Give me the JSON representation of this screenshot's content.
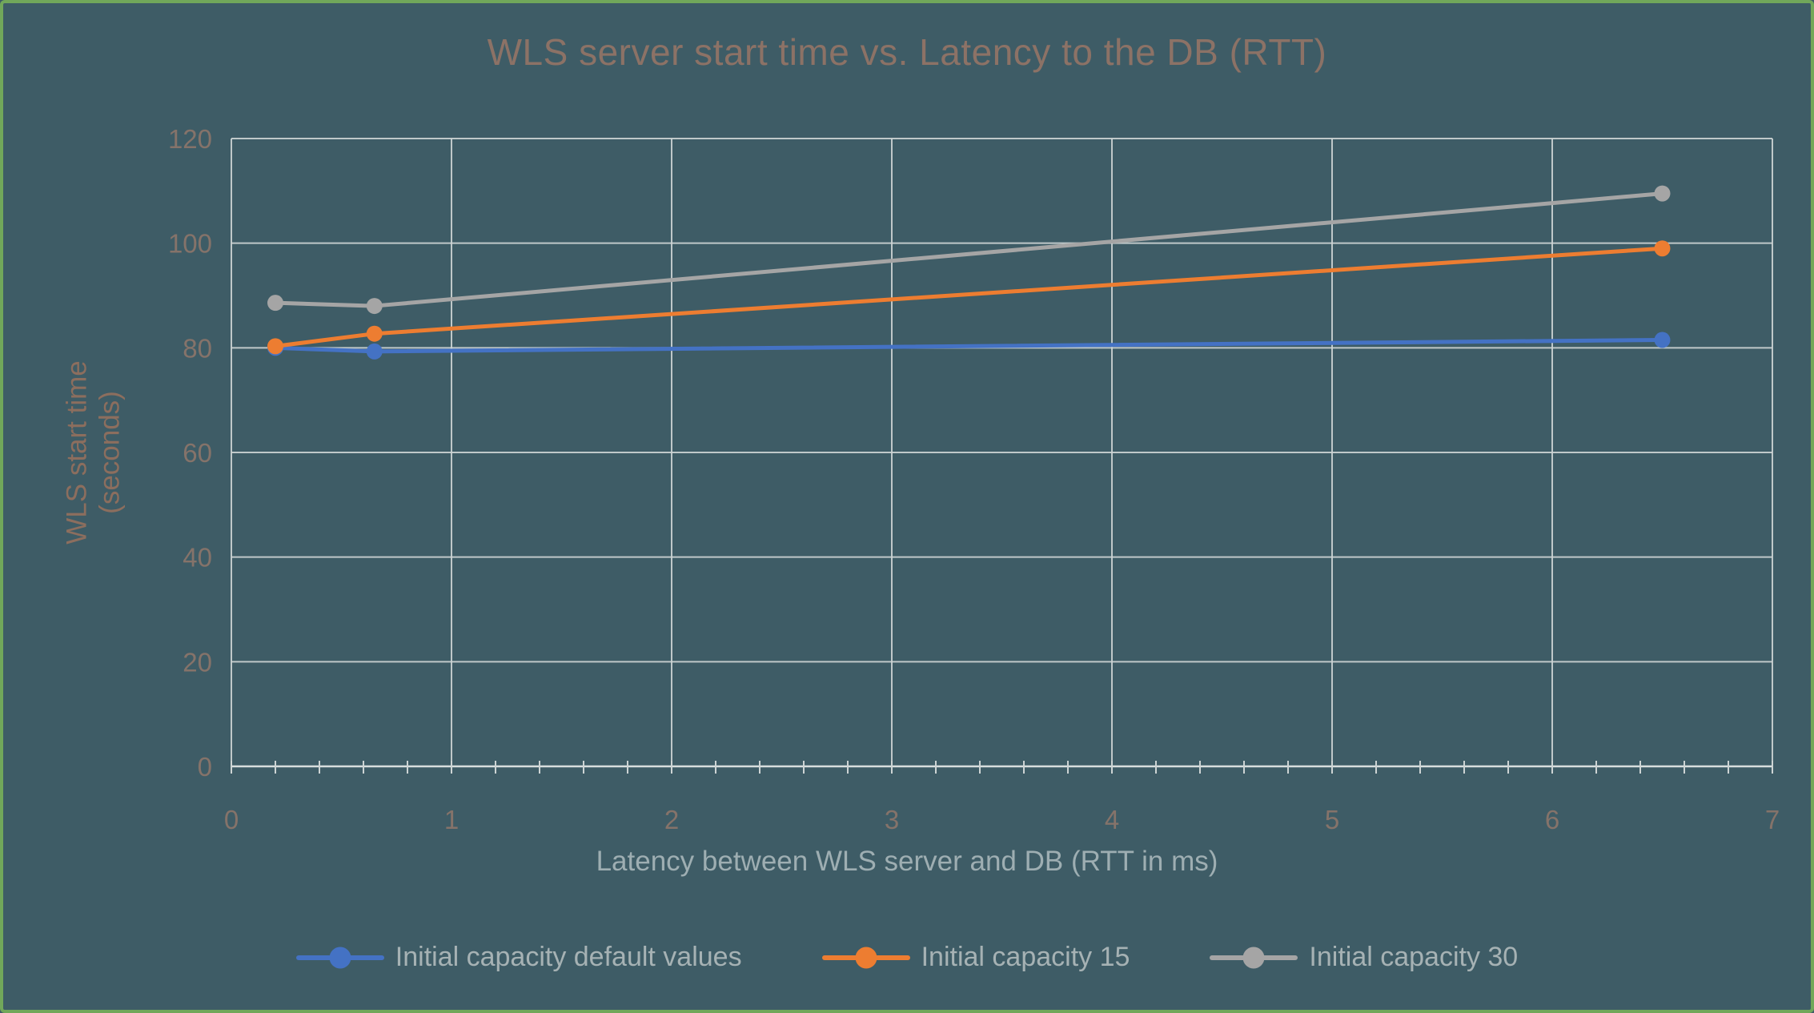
{
  "chart_data": {
    "type": "line",
    "title": "WLS server start time vs. Latency to the DB (RTT)",
    "xlabel": "Latency between WLS server and DB (RTT in ms)",
    "ylabel": "WLS start time (seconds)",
    "ylabel_lines": [
      "WLS start time",
      "(seconds)"
    ],
    "xlim": [
      0,
      7
    ],
    "ylim": [
      0,
      120
    ],
    "x_ticks": [
      0,
      1,
      2,
      3,
      4,
      5,
      6,
      7
    ],
    "y_ticks": [
      0,
      20,
      40,
      60,
      80,
      100,
      120
    ],
    "x_minor_tick_step": 0.2,
    "grid": true,
    "legend_position": "bottom",
    "series": [
      {
        "name": "Initial capacity default values",
        "color": "#4472C4",
        "x": [
          0.2,
          0.65,
          6.5
        ],
        "y": [
          80,
          79.3,
          81.5
        ]
      },
      {
        "name": "Initial capacity 15",
        "color": "#ED7D31",
        "x": [
          0.2,
          0.65,
          6.5
        ],
        "y": [
          80.3,
          82.7,
          99
        ]
      },
      {
        "name": "Initial capacity 30",
        "color": "#A5A5A5",
        "x": [
          0.2,
          0.65,
          6.5
        ],
        "y": [
          88.6,
          88,
          109.5
        ]
      }
    ],
    "style": {
      "background": "#3E5C66",
      "border_color": "#71A75A",
      "title_color": "#8C7266",
      "ytitle_color": "#8C6E5E",
      "tick_color": "#85736A",
      "xtitle_color": "#9EAEB2",
      "legend_color": "#A6B2B4",
      "grid_color": "#CDD4D4",
      "axis_color": "#D7DDDD"
    }
  }
}
